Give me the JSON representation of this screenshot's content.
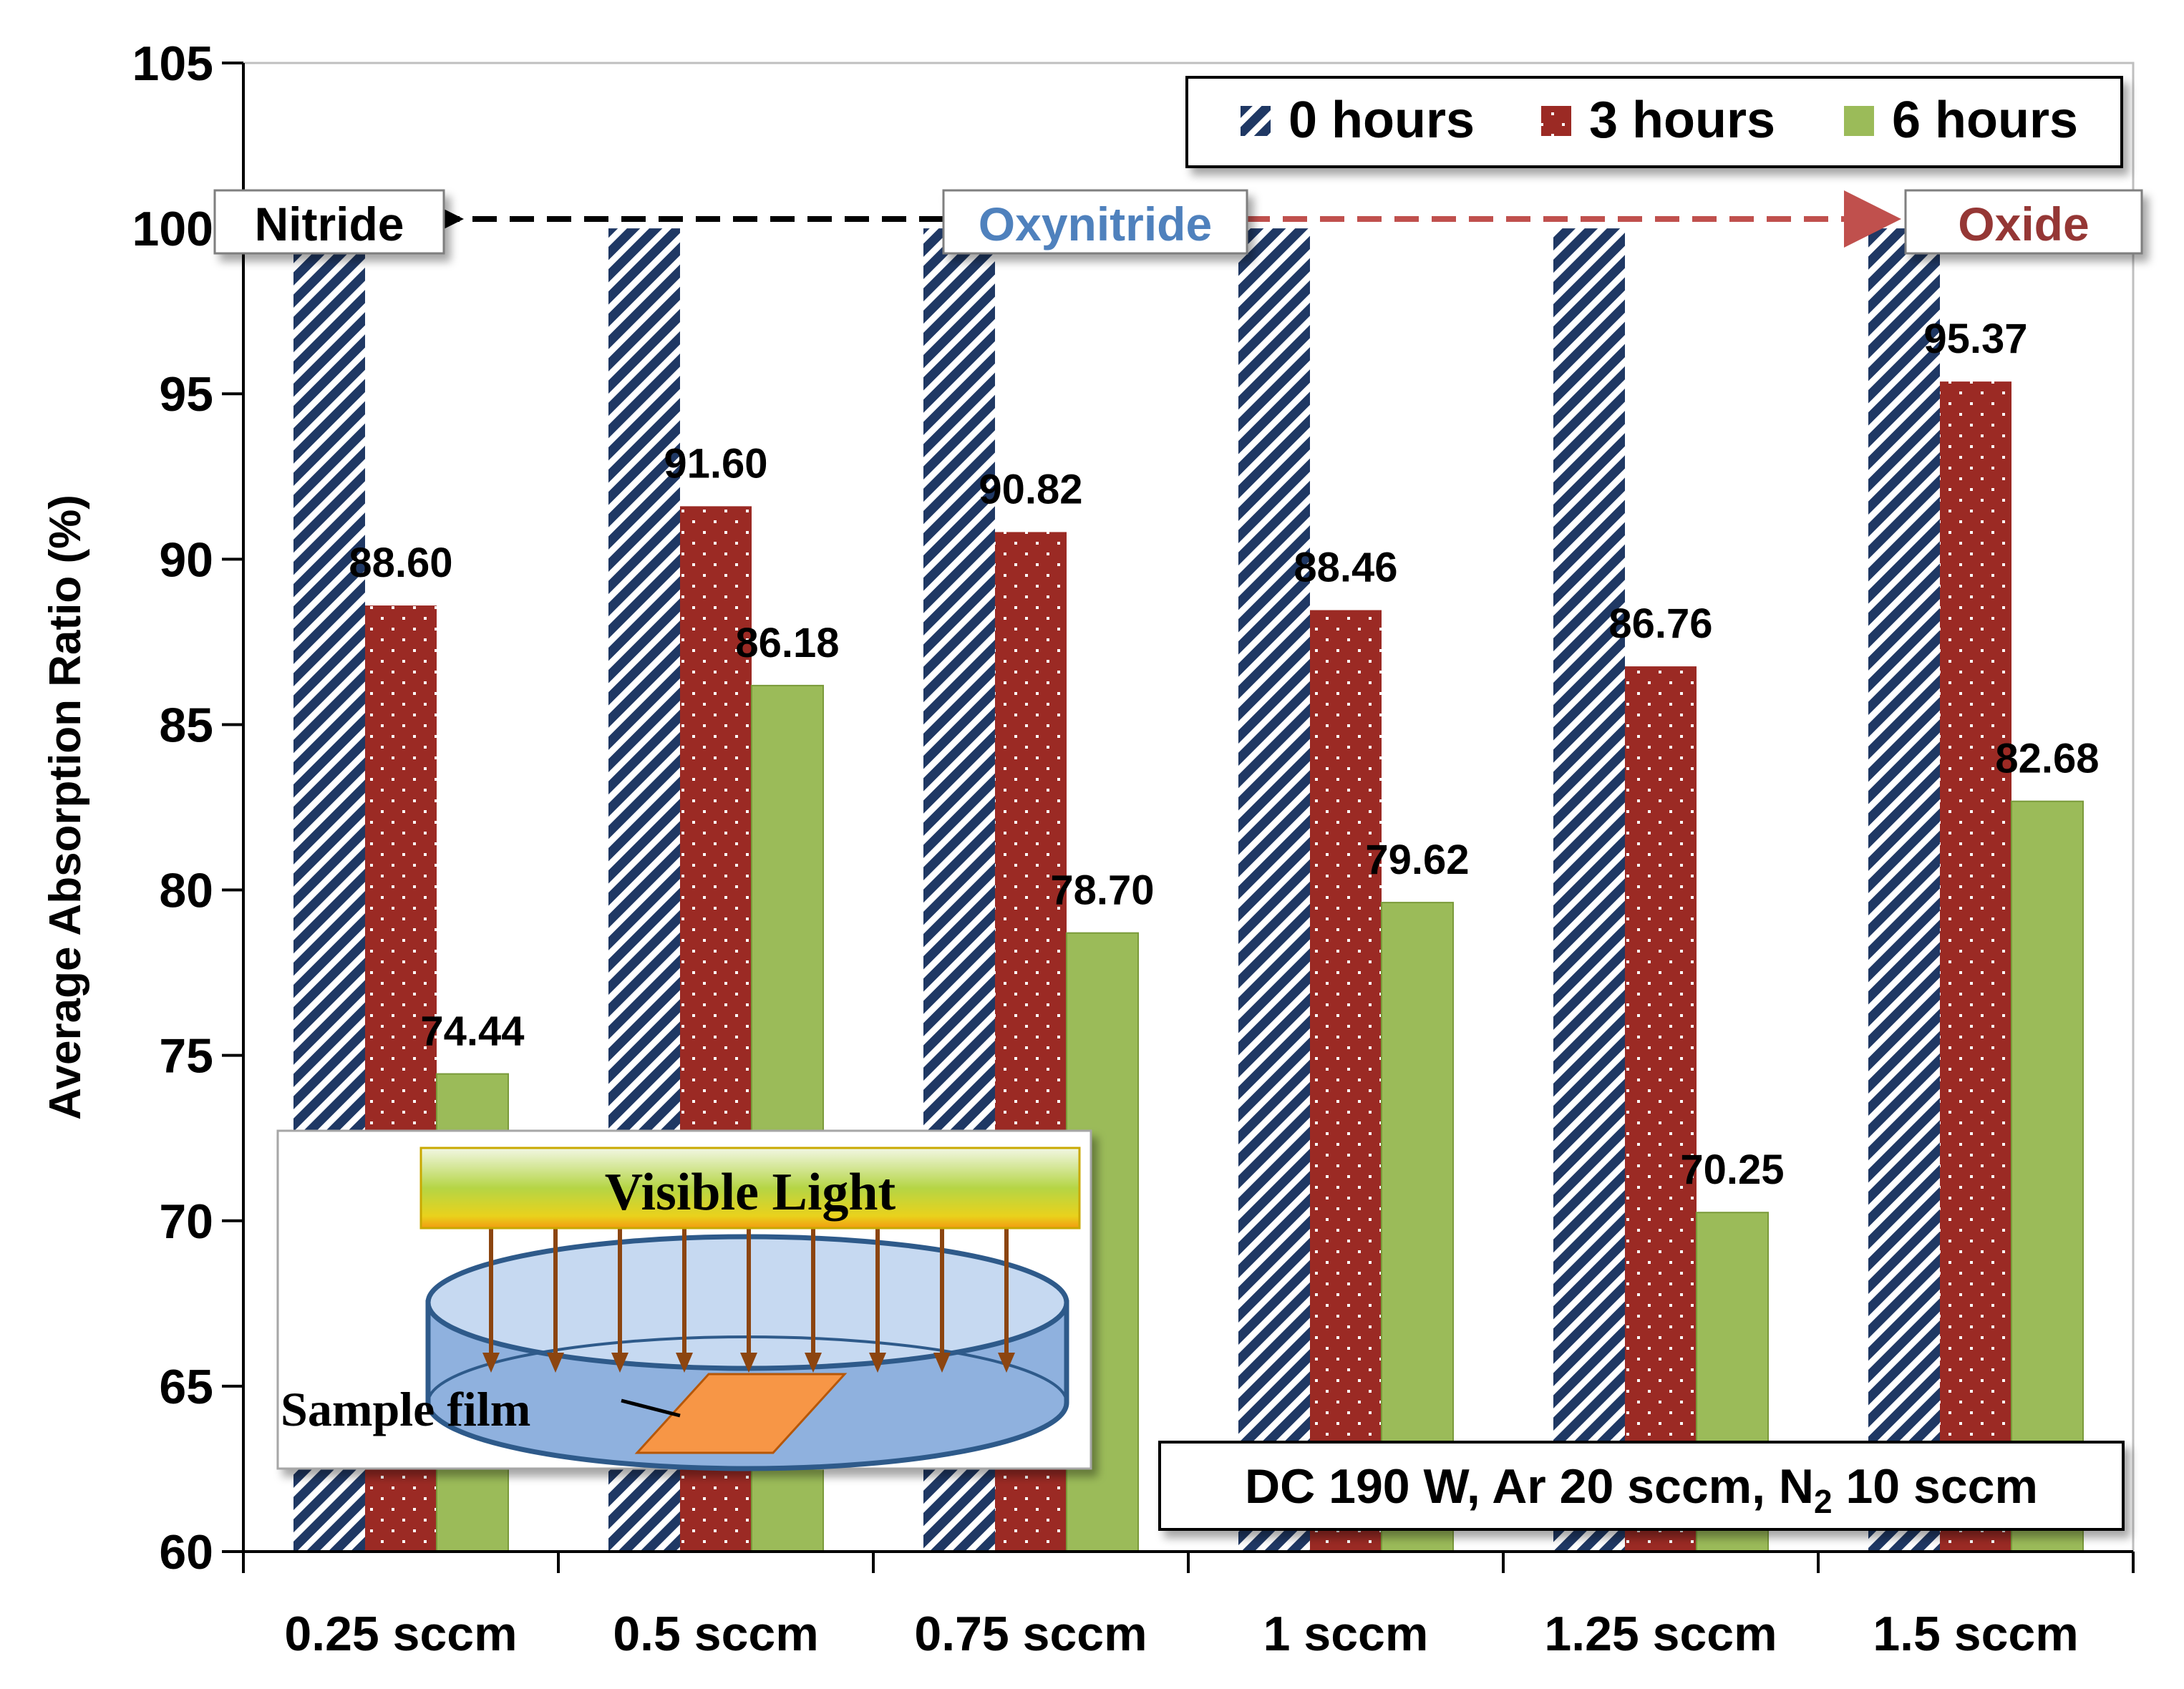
{
  "chart_data": {
    "type": "bar",
    "title": "",
    "xlabel": "",
    "ylabel": "Average Absorption Ratio (%)",
    "ylim": [
      60,
      105
    ],
    "yticks": [
      "60",
      "65",
      "70",
      "75",
      "80",
      "85",
      "90",
      "95",
      "100",
      "105"
    ],
    "categories": [
      "0.25 sccm",
      "0.5 sccm",
      "0.75 sccm",
      "1 sccm",
      "1.25 sccm",
      "1.5 sccm"
    ],
    "series": [
      {
        "name": "0 hours",
        "values": [
          100,
          100,
          100,
          100,
          100,
          100
        ],
        "labels": [
          "",
          "",
          "",
          "",
          "",
          ""
        ]
      },
      {
        "name": "3 hours",
        "values": [
          88.6,
          91.6,
          90.82,
          88.46,
          86.76,
          95.37
        ],
        "labels": [
          "88.60",
          "91.60",
          "90.82",
          "88.46",
          "86.76",
          "95.37"
        ]
      },
      {
        "name": "6 hours",
        "values": [
          74.44,
          86.18,
          78.7,
          79.62,
          70.25,
          82.68
        ],
        "labels": [
          "74.44",
          "86.18",
          "78.70",
          "79.62",
          "70.25",
          "82.68"
        ]
      }
    ],
    "legend_position": "top-right",
    "grid": false
  },
  "colors": {
    "series0_base": "#1f3864",
    "series0_stripe": "#ffffff",
    "series1": "#9b2a24",
    "series2": "#9bbb59",
    "oxynitride": "#4f81bd",
    "oxide": "#953735",
    "nitride": "#000000",
    "arrow_right": "#c0504d"
  },
  "annotations": {
    "nitride": "Nitride",
    "oxynitride": "Oxynitride",
    "oxide": "Oxide",
    "conditions_prefix": "DC 190 W, Ar 20 sccm, N",
    "conditions_sub": "2",
    "conditions_suffix": " 10 sccm"
  },
  "inset": {
    "light_label": "Visible Light",
    "sample_label": "Sample film"
  }
}
